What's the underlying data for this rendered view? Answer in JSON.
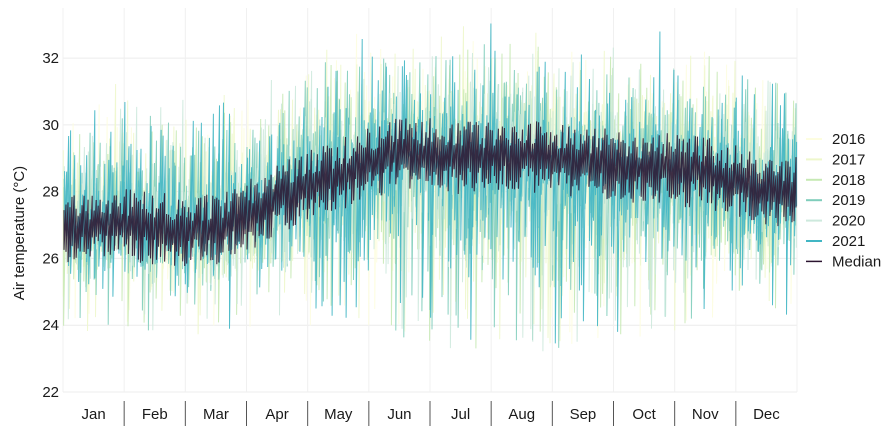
{
  "chart_data": {
    "type": "line",
    "title": "",
    "xlabel": "",
    "ylabel": "Air temperature (°C)",
    "ylim": [
      22,
      33.5
    ],
    "yticks": [
      22,
      24,
      26,
      28,
      30,
      32
    ],
    "grid": true,
    "legend_position": "right",
    "categories": [
      "Jan",
      "Feb",
      "Mar",
      "Apr",
      "May",
      "Jun",
      "Jul",
      "Aug",
      "Sep",
      "Oct",
      "Nov",
      "Dec"
    ],
    "series": [
      {
        "name": "2016",
        "color": "#fdfde0"
      },
      {
        "name": "2017",
        "color": "#eef7cc"
      },
      {
        "name": "2018",
        "color": "#c6e9b4"
      },
      {
        "name": "2019",
        "color": "#7fcdbb"
      },
      {
        "name": "2020",
        "color": "#cde9dd"
      },
      {
        "name": "2021",
        "color": "#41b6c4"
      },
      {
        "name": "Median",
        "color": "#2b1430",
        "months": [
          "Jan",
          "Feb",
          "Mar",
          "Apr",
          "May",
          "Jun",
          "Jul",
          "Aug",
          "Sep",
          "Oct",
          "Nov",
          "Dec"
        ],
        "values": [
          27.1,
          26.9,
          26.8,
          27.8,
          28.5,
          29.2,
          29.0,
          29.1,
          28.9,
          28.7,
          28.6,
          28.0
        ]
      }
    ],
    "band": {
      "months": [
        "Jan",
        "Feb",
        "Mar",
        "Apr",
        "May",
        "Jun",
        "Jul",
        "Aug",
        "Sep",
        "Oct",
        "Nov",
        "Dec"
      ],
      "high": [
        29.8,
        29.6,
        29.6,
        30.2,
        31.0,
        31.5,
        31.6,
        31.4,
        31.2,
        31.0,
        31.2,
        30.6
      ],
      "low": [
        25.2,
        24.8,
        24.8,
        25.4,
        25.0,
        24.8,
        24.4,
        24.6,
        24.4,
        24.8,
        25.0,
        25.4
      ]
    }
  }
}
